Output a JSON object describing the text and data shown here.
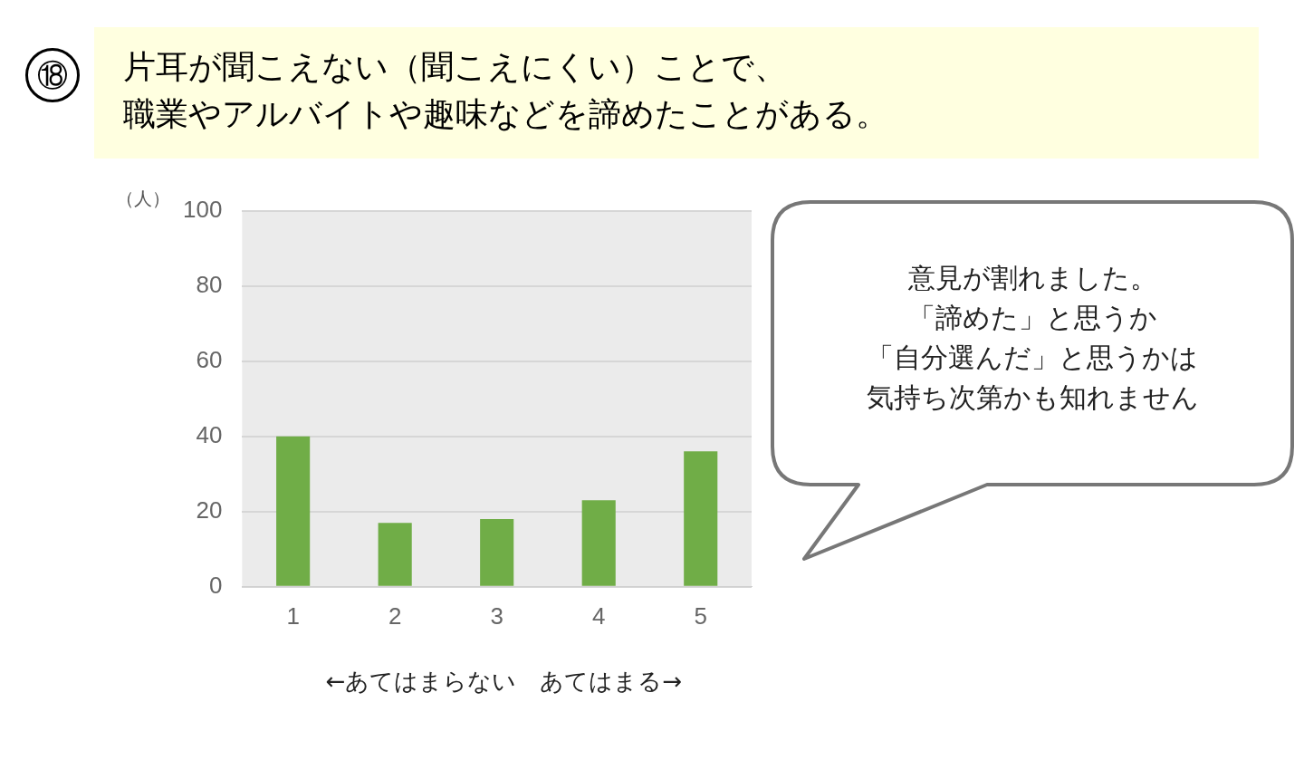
{
  "chart_data": {
    "type": "bar",
    "title": "片耳が聞こえない（聞こえにくい）ことで、",
    "subtitle": "職業やアルバイトや趣味などを諦めたことがある。",
    "ylabel": "（人）",
    "xlabel": "←あてはまらない　あてはまる→",
    "annotations": [
      "⑱",
      "意見が割れました。",
      "「諦めた」と思うか",
      "「自分選んだ」と思うかは",
      "気持ち次第かも知れません"
    ],
    "categories": [
      "1",
      "2",
      "3",
      "4",
      "5"
    ],
    "values": [
      40,
      17,
      18,
      23,
      36
    ],
    "color": "#70ad47",
    "ylim": [
      0,
      100
    ],
    "yticks": [
      0,
      20,
      40,
      60,
      80,
      100
    ],
    "grid": "y",
    "legend": false
  }
}
